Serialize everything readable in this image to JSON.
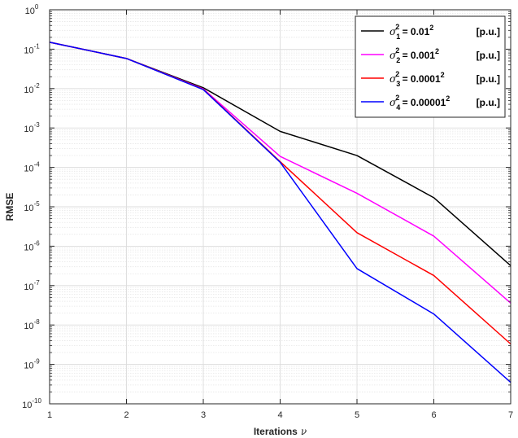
{
  "chart_data": {
    "type": "line",
    "xlabel": "Iterations",
    "xlabel_symbol": "ν",
    "ylabel": "RMSE",
    "yscale": "log",
    "xlim": [
      1,
      7
    ],
    "ylim": [
      1e-10,
      1
    ],
    "grid": true,
    "legend_position": "top-right",
    "x": [
      1,
      2,
      3,
      4,
      5,
      6,
      7
    ],
    "x_tick_labels": [
      "1",
      "2",
      "3",
      "4",
      "5",
      "6",
      "7"
    ],
    "y_tick_exponents": [
      0,
      -1,
      -2,
      -3,
      -4,
      -5,
      -6,
      -7,
      -8,
      -9,
      -10
    ],
    "series": [
      {
        "legend_value": "0.01",
        "legend_sub": "1",
        "legend_unit": "[p.u.]",
        "color": "#000000",
        "values": [
          0.15,
          0.058,
          0.0105,
          0.00082,
          0.0002,
          1.7e-05,
          3.2e-07
        ]
      },
      {
        "legend_value": "0.001",
        "legend_sub": "2",
        "legend_unit": "[p.u.]",
        "color": "#ff00ff",
        "values": [
          0.15,
          0.058,
          0.0098,
          0.00019,
          2.2e-05,
          1.8e-06,
          3.6e-08
        ]
      },
      {
        "legend_value": "0.0001",
        "legend_sub": "3",
        "legend_unit": "[p.u.]",
        "color": "#ff0000",
        "values": [
          0.15,
          0.058,
          0.0096,
          0.00014,
          2.2e-06,
          1.8e-07,
          3.3e-09
        ]
      },
      {
        "legend_value": "0.00001",
        "legend_sub": "4",
        "legend_unit": "[p.u.]",
        "color": "#0000ff",
        "values": [
          0.15,
          0.058,
          0.0094,
          0.000135,
          2.7e-07,
          1.9e-08,
          3.5e-10
        ]
      }
    ]
  }
}
